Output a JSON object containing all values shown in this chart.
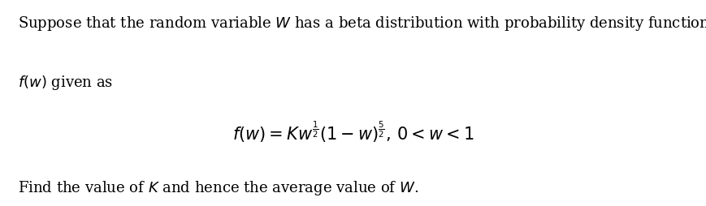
{
  "background_color": "#ffffff",
  "text_color": "#000000",
  "line1": "Suppose that the random variable $W$ has a beta distribution with probability density function",
  "line2": "$f(w)$ given as",
  "formula": "$f(w) = Kw^{\\frac{1}{2}}(1-w)^{\\frac{5}{2}},\\, 0 < w < 1$",
  "line4": "Find the value of $K$ and hence the average value of $W$.",
  "fontsize_text": 13.0,
  "fontsize_formula": 15.0,
  "fig_width": 8.69,
  "fig_height": 2.54,
  "dpi": 100
}
